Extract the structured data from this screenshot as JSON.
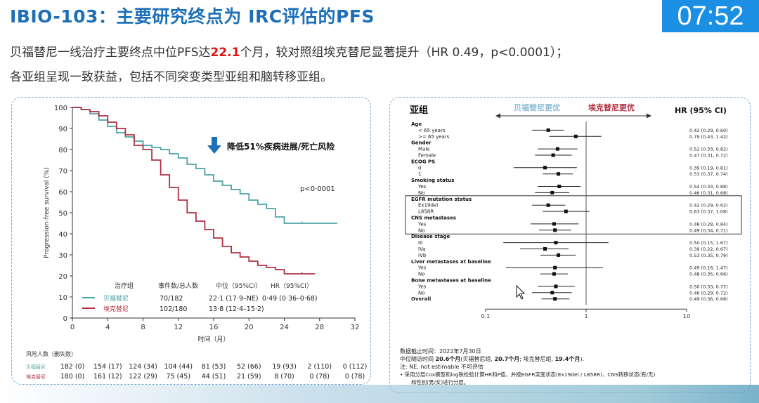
{
  "slide": {
    "title": "IBIO-103：主要研究终点为 IRC评估的PFS",
    "timer": "07:52",
    "subtitle_line1_pre": "贝福替尼一线治疗主要终点中位PFS达",
    "subtitle_line1_highlight": "22.1",
    "subtitle_line1_post": "个月，较对照组埃克替尼显著提升（HR 0.49，p<0.0001）；",
    "subtitle_line2": "各亚组呈现一致获益，包括不同突变类型亚组和脑转移亚组。"
  },
  "km_panel": {
    "annotation": "降低51%疾病进展/死亡风险",
    "pvalue": "p<0·0001",
    "table_headers": [
      "治疗组",
      "事件数/总人数",
      "中位（95%CI）",
      "HR（95%CI）"
    ],
    "groups": [
      {
        "name": "贝福替尼",
        "events": "70/182",
        "median": "22·1 (17·9–NE)",
        "hr": "0·49 (0·36–0·68)",
        "color": "#4aa3a8"
      },
      {
        "name": "埃克替尼",
        "events": "102/180",
        "median": "13·8 (12·4–15·2)",
        "hr": "",
        "color": "#b03040"
      }
    ],
    "risk_title": "风险人数（删失数）",
    "risk_rows": [
      {
        "label": "贝福替尼",
        "values": [
          "182 (0)",
          "154 (17)",
          "124 (34)",
          "104 (44)",
          "81 (53)",
          "52 (66)",
          "19 (93)",
          "2 (110)",
          "0 (112)"
        ]
      },
      {
        "label": "埃克替尼",
        "values": [
          "180 (0)",
          "161 (12)",
          "122 (29)",
          "75 (45)",
          "44 (51)",
          "21 (59)",
          "8 (70)",
          "0 (78)",
          "0 (78)"
        ]
      }
    ]
  },
  "forest_panel": {
    "col_subgroup": "亚组",
    "favor_left": "贝福替尼更优",
    "favor_right": "埃克替尼更优",
    "col_hr": "HR (95% CI)",
    "footnote_line1": "数据截止时间：2022年7月30日",
    "footnote_line2_pre": "中位随访时间 ",
    "footnote_line2_b1": "20.6个月",
    "footnote_line2_mid1": "(贝福替尼组, ",
    "footnote_line2_b2": "20.7个月",
    "footnote_line2_mid2": "; 埃克替尼组, ",
    "footnote_line2_b3": "19.4个月",
    "footnote_line2_end": ").",
    "footnote_line3": "注: NE, not estimable 不可评估",
    "footnote_line4": "•    采用分层Cox模型和log秩检验计算HR和P值，并按EGFR突变状态(Ex19del / L858R)、CNS转移状态(有/无)",
    "footnote_line5": "和性别(男/女)进行分层。"
  },
  "chart_data": [
    {
      "type": "line",
      "title": "",
      "xlabel": "时间（月）",
      "ylabel": "Progression-free survival (%)",
      "xlim": [
        0,
        32
      ],
      "ylim": [
        0,
        100
      ],
      "xticks": [
        0,
        4,
        8,
        12,
        16,
        20,
        24,
        28,
        32
      ],
      "yticks": [
        0,
        10,
        20,
        30,
        40,
        50,
        60,
        70,
        80,
        90,
        100
      ],
      "series": [
        {
          "name": "贝福替尼",
          "color": "#4aa3a8",
          "x": [
            0,
            1,
            2,
            3,
            4,
            5,
            6,
            7,
            8,
            9,
            10,
            11,
            12,
            13,
            14,
            15,
            16,
            17,
            18,
            19,
            20,
            21,
            22,
            23,
            24,
            26,
            28,
            30
          ],
          "y": [
            100,
            99,
            97,
            94,
            91,
            88,
            86,
            84,
            82,
            81,
            80,
            78,
            76,
            73,
            71,
            68,
            65,
            63,
            61,
            59,
            56,
            54,
            52,
            48,
            45,
            45,
            45,
            45
          ]
        },
        {
          "name": "埃克替尼",
          "color": "#b03040",
          "x": [
            0,
            1,
            2,
            3,
            4,
            5,
            6,
            7,
            8,
            9,
            10,
            11,
            12,
            13,
            14,
            15,
            16,
            17,
            18,
            19,
            20,
            21,
            22,
            23,
            24,
            26,
            27.5
          ],
          "y": [
            100,
            99,
            98,
            96,
            93,
            90,
            87,
            82,
            80,
            75,
            68,
            62,
            56,
            50,
            46,
            42,
            38,
            34,
            31,
            29,
            27,
            25,
            24,
            23,
            21,
            21,
            21
          ]
        }
      ]
    },
    {
      "type": "scatter",
      "title": "",
      "xlabel": "",
      "x_scale": "log",
      "xticks": [
        0.1,
        1,
        10
      ],
      "xlim": [
        0.1,
        10
      ],
      "reference_line": 1,
      "rows": [
        {
          "label": "Age",
          "header": true
        },
        {
          "label": "< 65 years",
          "hr": 0.42,
          "lo": 0.29,
          "hi": 0.6,
          "text": "0.42 (0.29, 0.60)"
        },
        {
          "label": ">= 65 years",
          "hr": 0.79,
          "lo": 0.43,
          "hi": 1.42,
          "text": "0.79 (0.43, 1.42)"
        },
        {
          "label": "Gender",
          "header": true
        },
        {
          "label": "Male",
          "hr": 0.52,
          "lo": 0.33,
          "hi": 0.82,
          "text": "0.52 (0.33, 0.82)"
        },
        {
          "label": "Female",
          "hr": 0.47,
          "lo": 0.31,
          "hi": 0.72,
          "text": "0.47 (0.31, 0.72)"
        },
        {
          "label": "ECOG PS",
          "header": true
        },
        {
          "label": "0",
          "hr": 0.39,
          "lo": 0.19,
          "hi": 0.81,
          "text": "0.39 (0.19, 0.81)"
        },
        {
          "label": "1",
          "hr": 0.53,
          "lo": 0.37,
          "hi": 0.74,
          "text": "0.53 (0.37, 0.74)"
        },
        {
          "label": "Smoking status",
          "header": true
        },
        {
          "label": "Yes",
          "hr": 0.54,
          "lo": 0.33,
          "hi": 0.88,
          "text": "0.54 (0.33, 0.88)"
        },
        {
          "label": "No",
          "hr": 0.46,
          "lo": 0.31,
          "hi": 0.68,
          "text": "0.46 (0.31, 0.68)"
        },
        {
          "label": "EGFR mutation status",
          "header": true,
          "boxed": true
        },
        {
          "label": "Ex19del",
          "hr": 0.42,
          "lo": 0.29,
          "hi": 0.62,
          "text": "0.42 (0.29, 0.62)",
          "boxed": true
        },
        {
          "label": "L858R",
          "hr": 0.63,
          "lo": 0.37,
          "hi": 1.08,
          "text": "0.63 (0.37, 1.08)",
          "boxed": true
        },
        {
          "label": "CNS metastases",
          "header": true,
          "boxed": true
        },
        {
          "label": "Yes",
          "hr": 0.48,
          "lo": 0.28,
          "hi": 0.84,
          "text": "0.48 (0.28, 0.84)",
          "boxed": true
        },
        {
          "label": "No",
          "hr": 0.49,
          "lo": 0.34,
          "hi": 0.71,
          "text": "0.49 (0.34, 0.71)",
          "boxed": true
        },
        {
          "label": "Disease stage",
          "header": true
        },
        {
          "label": "III",
          "hr": 0.5,
          "lo": 0.15,
          "hi": 1.67,
          "text": "0.50 (0.15, 1.67)"
        },
        {
          "label": "IVa",
          "hr": 0.39,
          "lo": 0.22,
          "hi": 0.67,
          "text": "0.39 (0.22, 0.67)"
        },
        {
          "label": "IVb",
          "hr": 0.53,
          "lo": 0.35,
          "hi": 0.79,
          "text": "0.53 (0.35, 0.79)"
        },
        {
          "label": "Liver metastases at baseline",
          "header": true
        },
        {
          "label": "Yes",
          "hr": 0.49,
          "lo": 0.16,
          "hi": 1.47,
          "text": "0.49 (0.16, 1.47)"
        },
        {
          "label": "No",
          "hr": 0.48,
          "lo": 0.35,
          "hi": 0.66,
          "text": "0.48 (0.35, 0.66)"
        },
        {
          "label": "Bone metastases at baseline",
          "header": true
        },
        {
          "label": "Yes",
          "hr": 0.5,
          "lo": 0.33,
          "hi": 0.77,
          "text": "0.50 (0.33, 0.77)"
        },
        {
          "label": "No",
          "hr": 0.46,
          "lo": 0.29,
          "hi": 0.72,
          "text": "0.46 (0.29, 0.72)"
        },
        {
          "label": "Overall",
          "hr": 0.49,
          "lo": 0.36,
          "hi": 0.68,
          "text": "0.49 (0.36, 0.68)",
          "bold": true
        }
      ]
    }
  ]
}
